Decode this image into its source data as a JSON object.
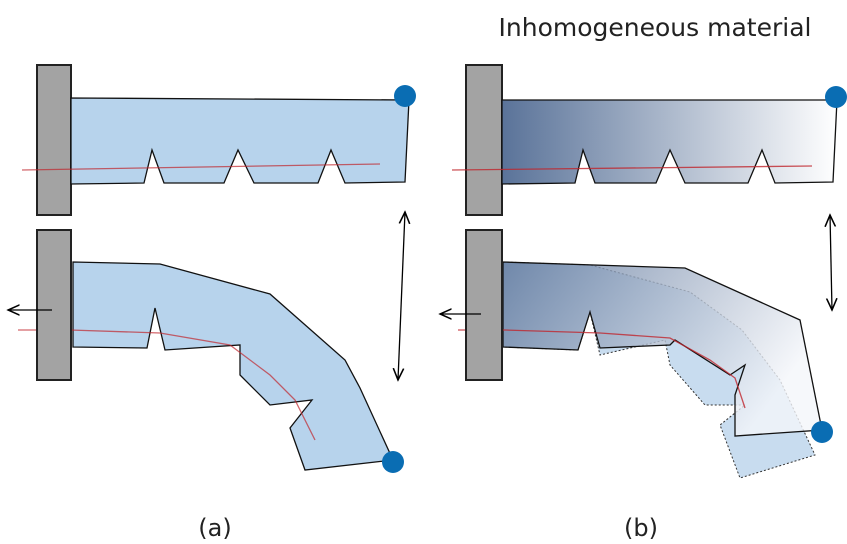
{
  "title": "Inhomogeneous material",
  "panels": [
    {
      "label": "(a)"
    },
    {
      "label": "(b)"
    }
  ]
}
